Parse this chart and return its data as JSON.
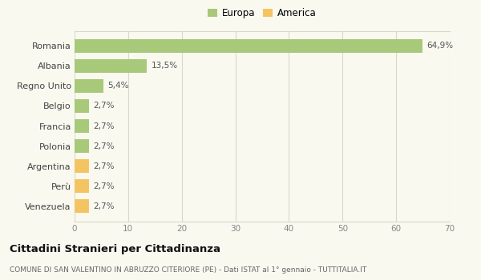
{
  "categories": [
    "Venezuela",
    "Perù",
    "Argentina",
    "Polonia",
    "Francia",
    "Belgio",
    "Regno Unito",
    "Albania",
    "Romania"
  ],
  "values": [
    2.7,
    2.7,
    2.7,
    2.7,
    2.7,
    2.7,
    5.4,
    13.5,
    64.9
  ],
  "labels": [
    "2,7%",
    "2,7%",
    "2,7%",
    "2,7%",
    "2,7%",
    "2,7%",
    "5,4%",
    "13,5%",
    "64,9%"
  ],
  "colors": [
    "#f5c462",
    "#f5c462",
    "#f5c462",
    "#a8c87a",
    "#a8c87a",
    "#a8c87a",
    "#a8c87a",
    "#a8c87a",
    "#a8c87a"
  ],
  "legend_europa_color": "#a8c87a",
  "legend_america_color": "#f5c462",
  "xlim": [
    0,
    70
  ],
  "xticks": [
    0,
    10,
    20,
    30,
    40,
    50,
    60,
    70
  ],
  "title": "Cittadini Stranieri per Cittadinanza",
  "subtitle": "COMUNE DI SAN VALENTINO IN ABRUZZO CITERIORE (PE) - Dati ISTAT al 1° gennaio - TUTTITALIA.IT",
  "background_color": "#f9f9f0",
  "grid_color": "#d8d8c8",
  "bar_height": 0.65
}
